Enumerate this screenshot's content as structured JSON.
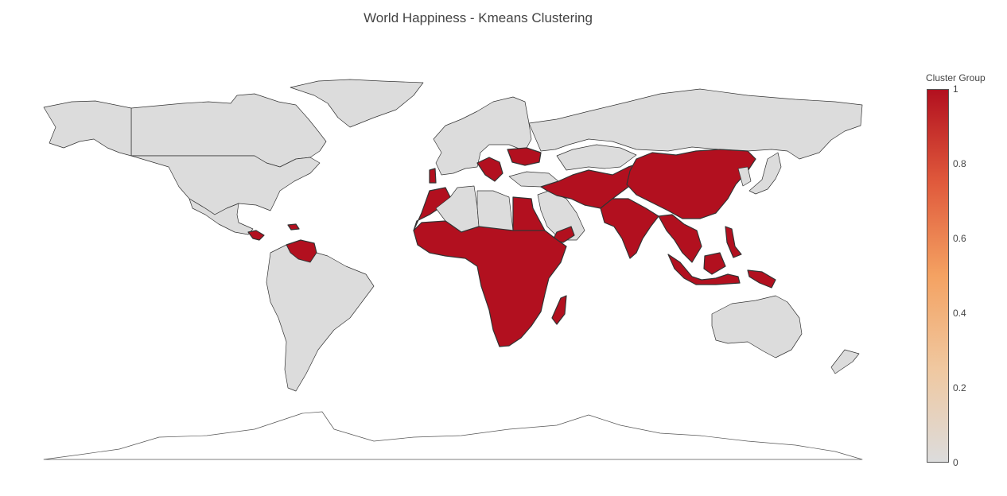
{
  "chart_data": {
    "type": "choropleth",
    "title": "World Happiness - Kmeans Clustering",
    "projection": "equirectangular",
    "colorbar": {
      "title": "Cluster Group",
      "range": [
        0,
        1
      ],
      "ticks": [
        "0",
        "0.2",
        "0.4",
        "0.6",
        "0.8",
        "1"
      ],
      "colorscale": [
        "#dcdcdc",
        "#f0c8a0",
        "#f4a262",
        "#e05a3c",
        "#b2101f"
      ]
    },
    "colors": {
      "cluster_0": "#dcdcdc",
      "cluster_1": "#b2101f"
    },
    "regions": [
      {
        "name": "Canada",
        "value": 0
      },
      {
        "name": "Alaska",
        "value": 0
      },
      {
        "name": "Greenland",
        "value": 0
      },
      {
        "name": "United States",
        "value": 0
      },
      {
        "name": "Mexico",
        "value": 0
      },
      {
        "name": "Guatemala/Honduras",
        "value": 1
      },
      {
        "name": "Haiti",
        "value": 1
      },
      {
        "name": "Venezuela",
        "value": 1
      },
      {
        "name": "South America",
        "value": 0
      },
      {
        "name": "Europe",
        "value": 0
      },
      {
        "name": "Balkans",
        "value": 1
      },
      {
        "name": "Ukraine",
        "value": 1
      },
      {
        "name": "Portugal",
        "value": 1
      },
      {
        "name": "Russia",
        "value": 0
      },
      {
        "name": "Turkey",
        "value": 0
      },
      {
        "name": "Morocco",
        "value": 1
      },
      {
        "name": "Algeria",
        "value": 0
      },
      {
        "name": "Libya",
        "value": 0
      },
      {
        "name": "Egypt",
        "value": 1
      },
      {
        "name": "Arabian Peninsula",
        "value": 0
      },
      {
        "name": "Yemen",
        "value": 1
      },
      {
        "name": "Sub-Saharan Africa",
        "value": 1
      },
      {
        "name": "Madagascar",
        "value": 1
      },
      {
        "name": "Middle East / Central Asia",
        "value": 1
      },
      {
        "name": "Kazakhstan",
        "value": 0
      },
      {
        "name": "China",
        "value": 1
      },
      {
        "name": "India",
        "value": 1
      },
      {
        "name": "Southeast Asia",
        "value": 1
      },
      {
        "name": "Philippines",
        "value": 1
      },
      {
        "name": "Indonesia",
        "value": 1
      },
      {
        "name": "Papua New Guinea",
        "value": 1
      },
      {
        "name": "Japan",
        "value": 0
      },
      {
        "name": "Korea",
        "value": 0
      },
      {
        "name": "Australia",
        "value": 0
      },
      {
        "name": "New Zealand",
        "value": 0
      },
      {
        "name": "Antarctica",
        "value": 0
      }
    ]
  }
}
